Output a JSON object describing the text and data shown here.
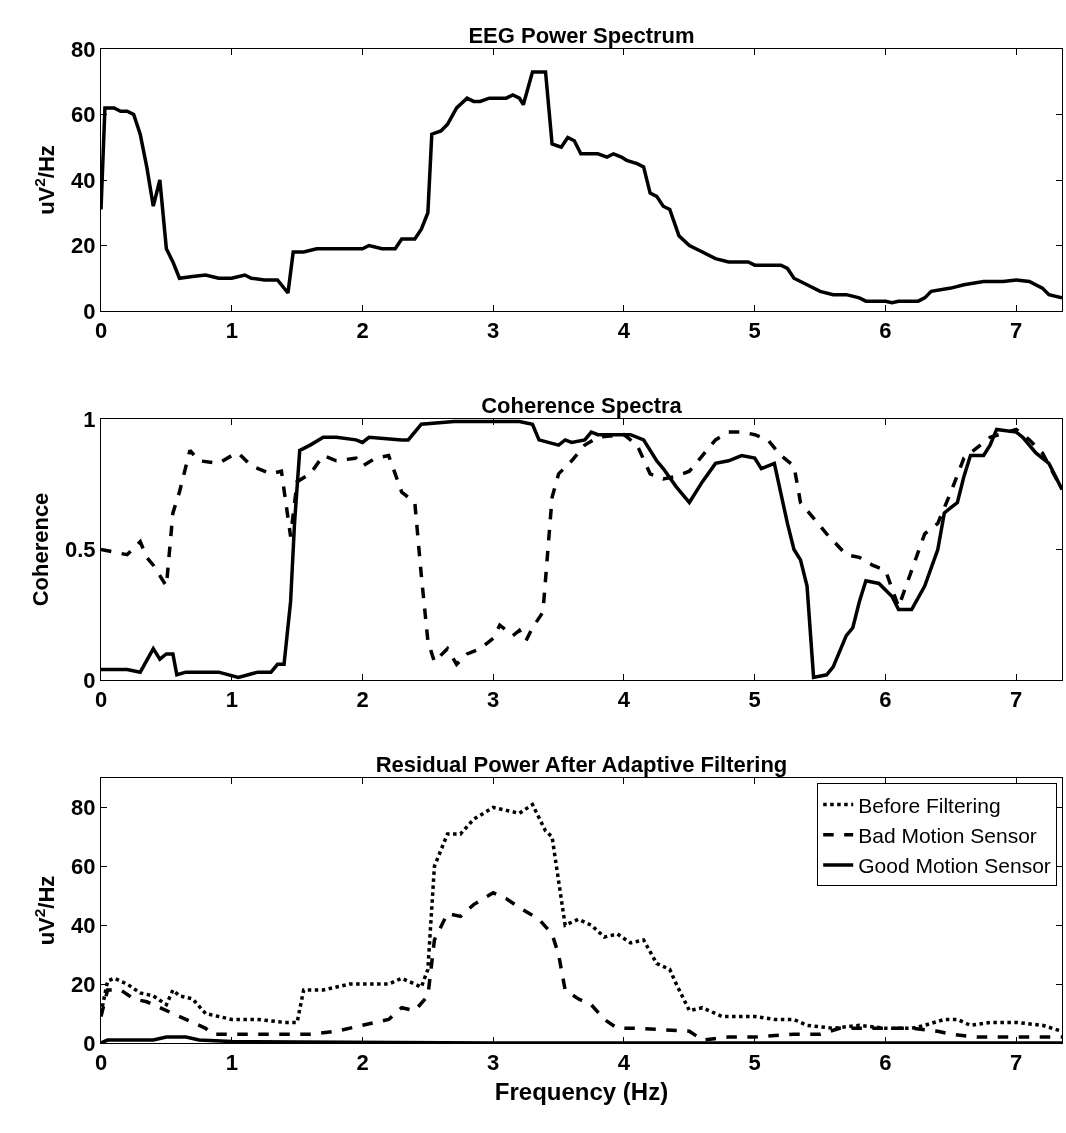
{
  "chart_data": [
    {
      "type": "line",
      "title": "EEG Power Spectrum",
      "ylabel": "uV$^{2}$/Hz",
      "xlim": [
        0,
        7.35
      ],
      "xticks": [
        0,
        1,
        2,
        3,
        4,
        5,
        6,
        7
      ],
      "ylim": [
        0,
        80
      ],
      "yticks": [
        0,
        20,
        40,
        60,
        80
      ],
      "grid": false,
      "legend": false,
      "series": [
        {
          "color": "#000000",
          "line_style": "solid",
          "x": [
            0,
            0.03,
            0.1,
            0.15,
            0.2,
            0.25,
            0.3,
            0.35,
            0.4,
            0.45,
            0.5,
            0.55,
            0.6,
            0.7,
            0.8,
            0.9,
            1.0,
            1.1,
            1.15,
            1.25,
            1.35,
            1.43,
            1.47,
            1.55,
            1.65,
            1.7,
            1.8,
            2.0,
            2.05,
            2.15,
            2.25,
            2.3,
            2.4,
            2.45,
            2.5,
            2.53,
            2.6,
            2.65,
            2.72,
            2.8,
            2.85,
            2.9,
            2.97,
            3.05,
            3.1,
            3.15,
            3.2,
            3.23,
            3.3,
            3.4,
            3.45,
            3.52,
            3.57,
            3.62,
            3.67,
            3.75,
            3.8,
            3.87,
            3.92,
            3.98,
            4.02,
            4.1,
            4.15,
            4.2,
            4.25,
            4.3,
            4.35,
            4.42,
            4.5,
            4.6,
            4.7,
            4.8,
            4.95,
            5.0,
            5.2,
            5.25,
            5.3,
            5.4,
            5.5,
            5.6,
            5.7,
            5.8,
            5.85,
            6.0,
            6.05,
            6.1,
            6.25,
            6.3,
            6.35,
            6.5,
            6.6,
            6.75,
            6.9,
            7.0,
            7.1,
            7.2,
            7.25,
            7.35
          ],
          "values": [
            31,
            62,
            62,
            61,
            61,
            60,
            54,
            44,
            32,
            40,
            19,
            15,
            10,
            10.5,
            11,
            10,
            10,
            11,
            10,
            9.5,
            9.5,
            5.5,
            18,
            18,
            19,
            19,
            19,
            19,
            20,
            19,
            19,
            22,
            22,
            25,
            30,
            54,
            55,
            57,
            62,
            65,
            64,
            64,
            65,
            65,
            65,
            66,
            65,
            63,
            73,
            73,
            51,
            50,
            53,
            52,
            48,
            48,
            48,
            47,
            48,
            47,
            46,
            45,
            44,
            36,
            35,
            32,
            31,
            23,
            20,
            18,
            16,
            15,
            15,
            14,
            14,
            13,
            10,
            8,
            6,
            5,
            5,
            4,
            3,
            3,
            2.5,
            3,
            3,
            4,
            6,
            7,
            8,
            9,
            9,
            9.5,
            9,
            7,
            5,
            4
          ]
        }
      ]
    },
    {
      "type": "line",
      "title": "Coherence Spectra",
      "ylabel": "Coherence",
      "xlim": [
        0,
        7.35
      ],
      "xticks": [
        0,
        1,
        2,
        3,
        4,
        5,
        6,
        7
      ],
      "ylim": [
        0,
        1
      ],
      "yticks": [
        0,
        0.5,
        1
      ],
      "grid": false,
      "legend": false,
      "series": [
        {
          "color": "#000000",
          "line_style": "dashed",
          "x": [
            0,
            0.1,
            0.2,
            0.3,
            0.35,
            0.4,
            0.5,
            0.55,
            0.6,
            0.68,
            0.75,
            0.9,
            1.0,
            1.05,
            1.15,
            1.3,
            1.38,
            1.45,
            1.5,
            1.6,
            1.7,
            1.8,
            1.95,
            2.0,
            2.1,
            2.2,
            2.3,
            2.4,
            2.45,
            2.5,
            2.55,
            2.65,
            2.72,
            2.8,
            2.9,
            3.0,
            3.05,
            3.15,
            3.2,
            3.25,
            3.3,
            3.38,
            3.45,
            3.5,
            3.6,
            3.7,
            3.8,
            4.0,
            4.1,
            4.2,
            4.3,
            4.4,
            4.5,
            4.6,
            4.7,
            4.8,
            4.9,
            5.0,
            5.1,
            5.2,
            5.3,
            5.35,
            5.45,
            5.55,
            5.7,
            5.8,
            5.9,
            6.0,
            6.1,
            6.2,
            6.3,
            6.4,
            6.5,
            6.6,
            6.8,
            7.0,
            7.1,
            7.2,
            7.35
          ],
          "values": [
            0.5,
            0.49,
            0.48,
            0.53,
            0.47,
            0.44,
            0.36,
            0.64,
            0.72,
            0.88,
            0.84,
            0.83,
            0.86,
            0.87,
            0.82,
            0.79,
            0.8,
            0.55,
            0.76,
            0.79,
            0.86,
            0.84,
            0.85,
            0.82,
            0.85,
            0.86,
            0.72,
            0.68,
            0.4,
            0.15,
            0.07,
            0.12,
            0.06,
            0.1,
            0.12,
            0.16,
            0.21,
            0.17,
            0.19,
            0.15,
            0.2,
            0.26,
            0.7,
            0.79,
            0.84,
            0.9,
            0.93,
            0.94,
            0.9,
            0.79,
            0.77,
            0.78,
            0.8,
            0.86,
            0.92,
            0.95,
            0.95,
            0.94,
            0.92,
            0.86,
            0.82,
            0.68,
            0.62,
            0.56,
            0.48,
            0.47,
            0.44,
            0.42,
            0.28,
            0.42,
            0.56,
            0.6,
            0.72,
            0.85,
            0.93,
            0.96,
            0.92,
            0.87,
            0.73
          ]
        },
        {
          "color": "#000000",
          "line_style": "solid",
          "x": [
            0,
            0.2,
            0.3,
            0.4,
            0.45,
            0.5,
            0.55,
            0.58,
            0.65,
            0.9,
            1.05,
            1.2,
            1.3,
            1.35,
            1.4,
            1.45,
            1.48,
            1.52,
            1.6,
            1.7,
            1.8,
            1.95,
            2.0,
            2.05,
            2.3,
            2.35,
            2.45,
            2.7,
            3.2,
            3.3,
            3.35,
            3.5,
            3.55,
            3.6,
            3.7,
            3.75,
            3.8,
            4.05,
            4.15,
            4.25,
            4.3,
            4.4,
            4.5,
            4.6,
            4.7,
            4.8,
            4.9,
            5.0,
            5.05,
            5.15,
            5.25,
            5.3,
            5.35,
            5.4,
            5.45,
            5.55,
            5.6,
            5.7,
            5.75,
            5.8,
            5.85,
            5.95,
            6.05,
            6.1,
            6.2,
            6.3,
            6.4,
            6.45,
            6.5,
            6.55,
            6.6,
            6.65,
            6.75,
            6.8,
            6.85,
            7.0,
            7.05,
            7.15,
            7.25,
            7.35
          ],
          "values": [
            0.04,
            0.04,
            0.03,
            0.12,
            0.08,
            0.1,
            0.1,
            0.02,
            0.03,
            0.03,
            0.01,
            0.03,
            0.03,
            0.06,
            0.06,
            0.3,
            0.6,
            0.88,
            0.9,
            0.93,
            0.93,
            0.92,
            0.91,
            0.93,
            0.92,
            0.92,
            0.98,
            0.99,
            0.99,
            0.98,
            0.92,
            0.9,
            0.92,
            0.91,
            0.92,
            0.95,
            0.94,
            0.94,
            0.92,
            0.84,
            0.81,
            0.74,
            0.68,
            0.76,
            0.83,
            0.84,
            0.86,
            0.85,
            0.81,
            0.83,
            0.6,
            0.5,
            0.46,
            0.36,
            0.01,
            0.02,
            0.05,
            0.17,
            0.2,
            0.3,
            0.38,
            0.37,
            0.32,
            0.27,
            0.27,
            0.36,
            0.5,
            0.64,
            0.66,
            0.68,
            0.78,
            0.86,
            0.86,
            0.9,
            0.96,
            0.95,
            0.93,
            0.87,
            0.83,
            0.73
          ]
        }
      ]
    },
    {
      "type": "line",
      "title": "Residual Power After Adaptive Filtering",
      "xlabel": "Frequency (Hz)",
      "ylabel": "uV$^{2}$/Hz",
      "xlim": [
        0,
        7.35
      ],
      "xticks": [
        0,
        1,
        2,
        3,
        4,
        5,
        6,
        7
      ],
      "ylim": [
        0,
        90
      ],
      "yticks": [
        0,
        20,
        40,
        60,
        80
      ],
      "grid": false,
      "legend": "top right",
      "series": [
        {
          "name": "Before Filtering",
          "color": "#000000",
          "line_style": "dotted",
          "x": [
            0,
            0.05,
            0.1,
            0.2,
            0.3,
            0.4,
            0.5,
            0.55,
            0.6,
            0.7,
            0.8,
            0.9,
            1.0,
            1.2,
            1.4,
            1.5,
            1.55,
            1.7,
            1.9,
            2.2,
            2.3,
            2.45,
            2.5,
            2.55,
            2.65,
            2.75,
            2.85,
            3.0,
            3.1,
            3.2,
            3.3,
            3.4,
            3.45,
            3.55,
            3.65,
            3.75,
            3.85,
            3.95,
            4.05,
            4.15,
            4.25,
            4.35,
            4.4,
            4.5,
            4.6,
            4.75,
            5.0,
            5.15,
            5.3,
            5.4,
            5.6,
            5.8,
            6.0,
            6.2,
            6.3,
            6.45,
            6.55,
            6.65,
            6.8,
            7.0,
            7.2,
            7.35
          ],
          "values": [
            10,
            21,
            22,
            20,
            17,
            16,
            13,
            18,
            16,
            15,
            10,
            9,
            8,
            8,
            7,
            7,
            18,
            18,
            20,
            20,
            22,
            19,
            25,
            60,
            71,
            71,
            76,
            80,
            79,
            78,
            81,
            72,
            70,
            40,
            42,
            40,
            36,
            37,
            34,
            35,
            27,
            25,
            20,
            11,
            12,
            9,
            9,
            8,
            8,
            6,
            5,
            6,
            5,
            5,
            6,
            8,
            8,
            6,
            7,
            7,
            6,
            4
          ]
        },
        {
          "name": "Bad Motion Sensor",
          "color": "#000000",
          "line_style": "dashed",
          "x": [
            0,
            0.05,
            0.15,
            0.25,
            0.35,
            0.45,
            0.55,
            0.7,
            0.8,
            0.85,
            1.0,
            1.5,
            1.6,
            1.8,
            2.0,
            2.2,
            2.3,
            2.4,
            2.5,
            2.55,
            2.65,
            2.75,
            2.85,
            3.0,
            3.1,
            3.2,
            3.35,
            3.45,
            3.5,
            3.55,
            3.65,
            3.75,
            3.85,
            3.95,
            4.1,
            4.5,
            4.6,
            4.8,
            5.0,
            5.3,
            5.5,
            5.65,
            5.8,
            6.2,
            6.4,
            6.5,
            6.7,
            7.0,
            7.35
          ],
          "values": [
            9,
            18,
            18,
            15,
            14,
            12,
            10,
            7,
            5,
            3,
            3,
            3,
            3,
            4,
            6,
            8,
            12,
            11,
            16,
            35,
            44,
            43,
            47,
            51,
            49,
            46,
            42,
            37,
            30,
            18,
            15,
            13,
            8,
            5,
            5,
            4,
            1,
            2,
            2,
            3,
            3,
            5,
            5,
            5,
            4,
            3,
            2,
            2,
            2
          ]
        },
        {
          "name": "Good Motion Sensor",
          "color": "#000000",
          "line_style": "solid",
          "x": [
            0,
            0.05,
            0.4,
            0.5,
            0.65,
            0.75,
            1.0,
            1.5,
            3,
            5,
            7.35
          ],
          "values": [
            0,
            1,
            1,
            2,
            2,
            1,
            0.5,
            0.3,
            0,
            0,
            0
          ]
        }
      ]
    }
  ]
}
